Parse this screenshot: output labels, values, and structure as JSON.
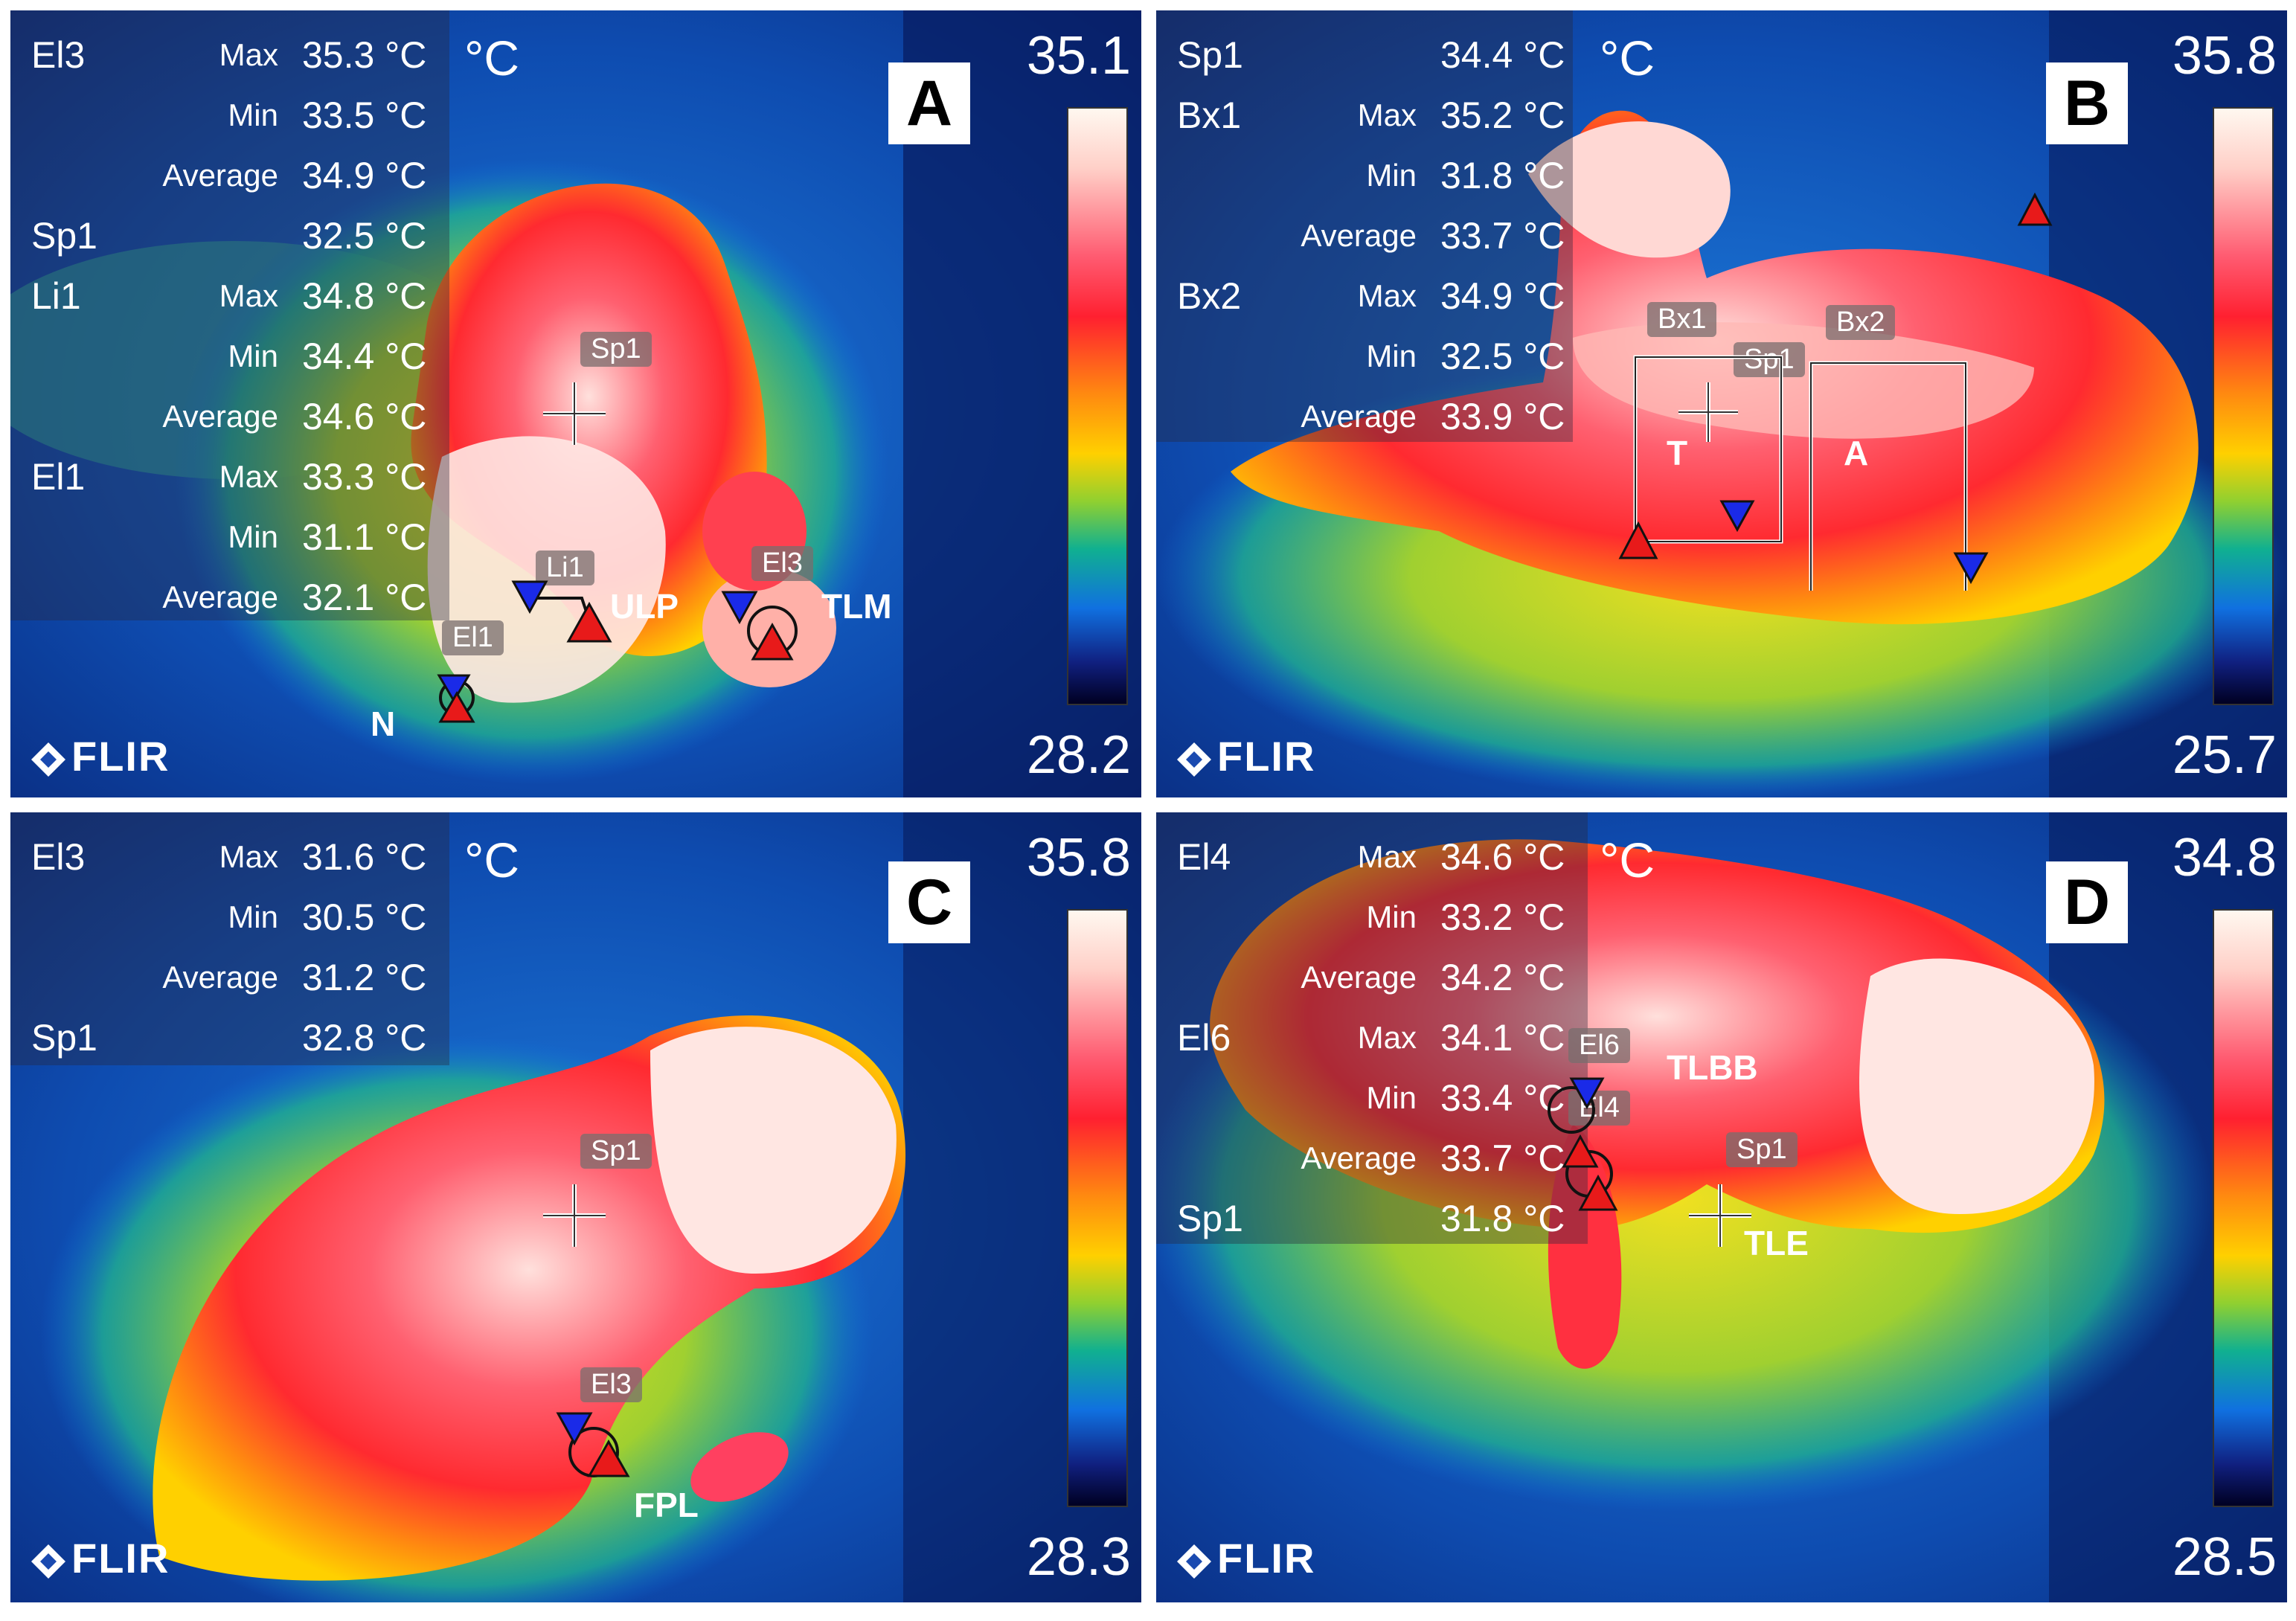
{
  "colors": {
    "max_marker": "#e81a1a",
    "min_marker": "#1a2ae8",
    "overlay": "#282840"
  },
  "stat_labels": {
    "max": "Max",
    "min": "Min",
    "avg": "Average"
  },
  "unit": "°C",
  "logo": "FLIR",
  "panels": {
    "a": {
      "letter": "A",
      "scale_max": "35.1",
      "scale_min": "28.2",
      "meas": [
        {
          "name": "El3",
          "stat": "Max",
          "value": "35.3 °C"
        },
        {
          "name": "",
          "stat": "Min",
          "value": "33.5 °C"
        },
        {
          "name": "",
          "stat": "Average",
          "value": "34.9 °C"
        },
        {
          "name": "Sp1",
          "stat": "",
          "value": "32.5 °C"
        },
        {
          "name": "Li1",
          "stat": "Max",
          "value": "34.8 °C"
        },
        {
          "name": "",
          "stat": "Min",
          "value": "34.4 °C"
        },
        {
          "name": "",
          "stat": "Average",
          "value": "34.6 °C"
        },
        {
          "name": "El1",
          "stat": "Max",
          "value": "33.3 °C"
        },
        {
          "name": "",
          "stat": "Min",
          "value": "31.1 °C"
        },
        {
          "name": "",
          "stat": "Average",
          "value": "32.1 °C"
        }
      ],
      "tags": [
        "Sp1",
        "Li1",
        "El3",
        "El1"
      ],
      "labels": [
        "ULP",
        "TLM",
        "N"
      ]
    },
    "b": {
      "letter": "B",
      "scale_max": "35.8",
      "scale_min": "25.7",
      "meas": [
        {
          "name": "Sp1",
          "stat": "",
          "value": "34.4 °C"
        },
        {
          "name": "Bx1",
          "stat": "Max",
          "value": "35.2 °C"
        },
        {
          "name": "",
          "stat": "Min",
          "value": "31.8 °C"
        },
        {
          "name": "",
          "stat": "Average",
          "value": "33.7 °C"
        },
        {
          "name": "Bx2",
          "stat": "Max",
          "value": "34.9 °C"
        },
        {
          "name": "",
          "stat": "Min",
          "value": "32.5 °C"
        },
        {
          "name": "",
          "stat": "Average",
          "value": "33.9 °C"
        }
      ],
      "tags": [
        "Bx1",
        "Sp1",
        "Bx2"
      ],
      "labels": [
        "T",
        "A"
      ]
    },
    "c": {
      "letter": "C",
      "scale_max": "35.8",
      "scale_min": "28.3",
      "meas": [
        {
          "name": "El3",
          "stat": "Max",
          "value": "31.6 °C"
        },
        {
          "name": "",
          "stat": "Min",
          "value": "30.5 °C"
        },
        {
          "name": "",
          "stat": "Average",
          "value": "31.2 °C"
        },
        {
          "name": "Sp1",
          "stat": "",
          "value": "32.8 °C"
        }
      ],
      "tags": [
        "Sp1",
        "El3"
      ],
      "labels": [
        "FPL"
      ]
    },
    "d": {
      "letter": "D",
      "scale_max": "34.8",
      "scale_min": "28.5",
      "meas": [
        {
          "name": "El4",
          "stat": "Max",
          "value": "34.6 °C"
        },
        {
          "name": "",
          "stat": "Min",
          "value": "33.2 °C"
        },
        {
          "name": "",
          "stat": "Average",
          "value": "34.2 °C"
        },
        {
          "name": "El6",
          "stat": "Max",
          "value": "34.1 °C"
        },
        {
          "name": "",
          "stat": "Min",
          "value": "33.4 °C"
        },
        {
          "name": "",
          "stat": "Average",
          "value": "33.7 °C"
        },
        {
          "name": "Sp1",
          "stat": "",
          "value": "31.8 °C"
        }
      ],
      "tags": [
        "El6",
        "El4",
        "Sp1"
      ],
      "labels": [
        "TLBB",
        "TLE"
      ]
    }
  }
}
